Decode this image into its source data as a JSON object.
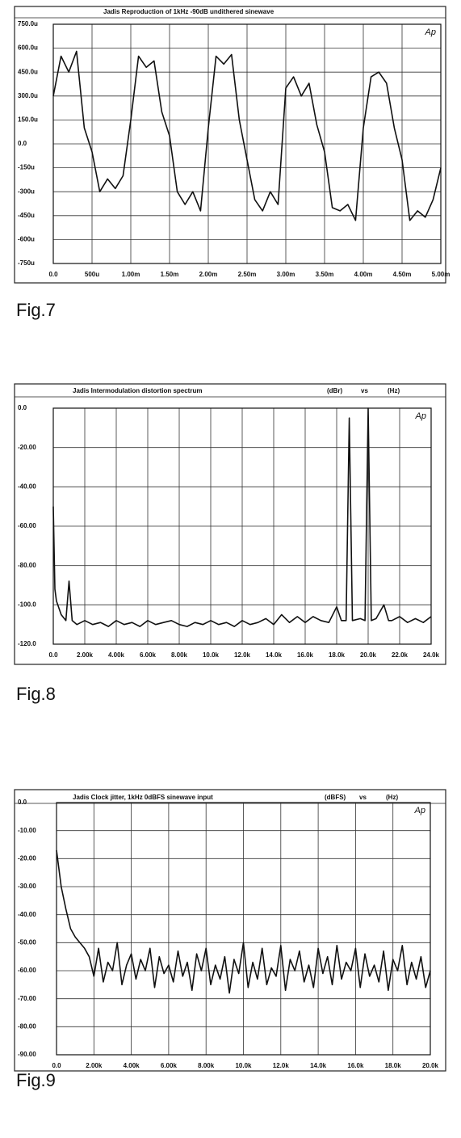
{
  "chart_data": [
    {
      "type": "line",
      "title": "Jadis Reproduction of 1kHz -90dB undithered sinewave",
      "annotation": "Ap",
      "caption": "Fig.7",
      "color": "#111111",
      "grid": true,
      "x": [
        0,
        0.1,
        0.2,
        0.3,
        0.4,
        0.5,
        0.6,
        0.7,
        0.8,
        0.9,
        1.0,
        1.1,
        1.2,
        1.3,
        1.4,
        1.5,
        1.6,
        1.7,
        1.8,
        1.9,
        2.0,
        2.1,
        2.2,
        2.3,
        2.4,
        2.5,
        2.6,
        2.7,
        2.8,
        2.9,
        3.0,
        3.1,
        3.2,
        3.3,
        3.4,
        3.5,
        3.6,
        3.7,
        3.8,
        3.9,
        4.0,
        4.1,
        4.2,
        4.3,
        4.4,
        4.5,
        4.6,
        4.7,
        4.8,
        4.9,
        5.0
      ],
      "values": [
        300,
        550,
        450,
        580,
        100,
        -50,
        -300,
        -220,
        -280,
        -200,
        150,
        550,
        480,
        520,
        200,
        50,
        -300,
        -380,
        -300,
        -420,
        100,
        550,
        500,
        560,
        150,
        -100,
        -350,
        -420,
        -300,
        -380,
        350,
        420,
        300,
        380,
        120,
        -50,
        -400,
        -420,
        -380,
        -480,
        100,
        420,
        450,
        380,
        100,
        -100,
        -480,
        -420,
        -460,
        -350,
        -150
      ],
      "xlim": [
        0,
        5
      ],
      "ylim": [
        -750,
        750
      ],
      "xticks": [
        {
          "value": 0,
          "label": "0.0"
        },
        {
          "value": 0.5,
          "label": "500u"
        },
        {
          "value": 1,
          "label": "1.00m"
        },
        {
          "value": 1.5,
          "label": "1.50m"
        },
        {
          "value": 2,
          "label": "2.00m"
        },
        {
          "value": 2.5,
          "label": "2.50m"
        },
        {
          "value": 3,
          "label": "3.00m"
        },
        {
          "value": 3.5,
          "label": "3.50m"
        },
        {
          "value": 4,
          "label": "4.00m"
        },
        {
          "value": 4.5,
          "label": "4.50m"
        },
        {
          "value": 5,
          "label": "5.00m"
        }
      ],
      "yticks": [
        {
          "value": 750,
          "label": "750.0u"
        },
        {
          "value": 600,
          "label": "600.0u"
        },
        {
          "value": 450,
          "label": "450.0u"
        },
        {
          "value": 300,
          "label": "300.0u"
        },
        {
          "value": 150,
          "label": "150.0u"
        },
        {
          "value": 0,
          "label": "0.0"
        },
        {
          "value": -150,
          "label": "-150u"
        },
        {
          "value": -300,
          "label": "-300u"
        },
        {
          "value": -450,
          "label": "-450u"
        },
        {
          "value": -600,
          "label": "-600u"
        },
        {
          "value": -750,
          "label": "-750u"
        }
      ]
    },
    {
      "type": "line",
      "title": "Jadis Intermodulation distortion spectrum",
      "ylabel": "(dBr)",
      "connector": "vs",
      "xlabel": "(Hz)",
      "annotation": "Ap",
      "caption": "Fig.8",
      "color": "#111111",
      "grid": true,
      "x": [
        0,
        100,
        200,
        500,
        800,
        1000,
        1200,
        1500,
        2000,
        2500,
        3000,
        3500,
        4000,
        4500,
        5000,
        5500,
        6000,
        6500,
        7000,
        7500,
        8000,
        8500,
        9000,
        9500,
        10000,
        10500,
        11000,
        11500,
        12000,
        12500,
        13000,
        13500,
        14000,
        14500,
        15000,
        15500,
        16000,
        16500,
        17000,
        17500,
        18000,
        18300,
        18600,
        18800,
        19000,
        19500,
        19800,
        20000,
        20200,
        20500,
        21000,
        21300,
        21500,
        22000,
        22500,
        23000,
        23500,
        24000
      ],
      "values": [
        -50,
        -92,
        -98,
        -105,
        -108,
        -88,
        -108,
        -110,
        -108,
        -110,
        -109,
        -111,
        -108,
        -110,
        -109,
        -111,
        -108,
        -110,
        -109,
        -108,
        -110,
        -111,
        -109,
        -110,
        -108,
        -110,
        -109,
        -111,
        -108,
        -110,
        -109,
        -107,
        -110,
        -105,
        -109,
        -106,
        -109,
        -106,
        -108,
        -109,
        -101,
        -108,
        -108,
        -5,
        -108,
        -107,
        -108,
        0,
        -108,
        -107,
        -100,
        -108,
        -108,
        -106,
        -109,
        -107,
        -109,
        -106
      ],
      "xlim": [
        0,
        24000
      ],
      "ylim": [
        -120,
        0
      ],
      "xticks": [
        {
          "value": 0,
          "label": "0.0"
        },
        {
          "value": 2000,
          "label": "2.00k"
        },
        {
          "value": 4000,
          "label": "4.00k"
        },
        {
          "value": 6000,
          "label": "6.00k"
        },
        {
          "value": 8000,
          "label": "8.00k"
        },
        {
          "value": 10000,
          "label": "10.0k"
        },
        {
          "value": 12000,
          "label": "12.0k"
        },
        {
          "value": 14000,
          "label": "14.0k"
        },
        {
          "value": 16000,
          "label": "16.0k"
        },
        {
          "value": 18000,
          "label": "18.0k"
        },
        {
          "value": 20000,
          "label": "20.0k"
        },
        {
          "value": 22000,
          "label": "22.0k"
        },
        {
          "value": 24000,
          "label": "24.0k"
        }
      ],
      "yticks": [
        {
          "value": 0,
          "label": "0.0"
        },
        {
          "value": -20,
          "label": "-20.00"
        },
        {
          "value": -40,
          "label": "-40.00"
        },
        {
          "value": -60,
          "label": "-60.00"
        },
        {
          "value": -80,
          "label": "-80.00"
        },
        {
          "value": -100,
          "label": "-100.0"
        },
        {
          "value": -120,
          "label": "-120.0"
        }
      ]
    },
    {
      "type": "line",
      "title": "Jadis Clock jitter, 1kHz 0dBFS sinewave input",
      "ylabel": "(dBFS)",
      "connector": "vs",
      "xlabel": "(Hz)",
      "annotation": "Ap",
      "caption": "Fig.9",
      "color": "#111111",
      "grid": true,
      "x": [
        0,
        250,
        500,
        750,
        1000,
        1250,
        1500,
        1750,
        2000,
        2250,
        2500,
        2750,
        3000,
        3250,
        3500,
        3750,
        4000,
        4250,
        4500,
        4750,
        5000,
        5250,
        5500,
        5750,
        6000,
        6250,
        6500,
        6750,
        7000,
        7250,
        7500,
        7750,
        8000,
        8250,
        8500,
        8750,
        9000,
        9250,
        9500,
        9750,
        10000,
        10250,
        10500,
        10750,
        11000,
        11250,
        11500,
        11750,
        12000,
        12250,
        12500,
        12750,
        13000,
        13250,
        13500,
        13750,
        14000,
        14250,
        14500,
        14750,
        15000,
        15250,
        15500,
        15750,
        16000,
        16250,
        16500,
        16750,
        17000,
        17250,
        17500,
        17750,
        18000,
        18250,
        18500,
        18750,
        19000,
        19250,
        19500,
        19750,
        20000
      ],
      "values": [
        -17,
        -30,
        -38,
        -45,
        -48,
        -50,
        -52,
        -55,
        -62,
        -52,
        -64,
        -57,
        -60,
        -50,
        -65,
        -58,
        -54,
        -63,
        -56,
        -60,
        -52,
        -66,
        -55,
        -61,
        -58,
        -64,
        -53,
        -62,
        -57,
        -67,
        -54,
        -60,
        -52,
        -65,
        -58,
        -63,
        -55,
        -68,
        -56,
        -61,
        -50,
        -66,
        -57,
        -63,
        -52,
        -65,
        -59,
        -62,
        -51,
        -67,
        -56,
        -60,
        -53,
        -64,
        -58,
        -66,
        -52,
        -61,
        -55,
        -65,
        -51,
        -63,
        -57,
        -60,
        -52,
        -66,
        -54,
        -62,
        -58,
        -64,
        -53,
        -67,
        -56,
        -60,
        -51,
        -65,
        -57,
        -63,
        -55,
        -66,
        -60
      ],
      "xlim": [
        0,
        20000
      ],
      "ylim": [
        -90,
        0
      ],
      "xticks": [
        {
          "value": 0,
          "label": "0.0"
        },
        {
          "value": 2000,
          "label": "2.00k"
        },
        {
          "value": 4000,
          "label": "4.00k"
        },
        {
          "value": 6000,
          "label": "6.00k"
        },
        {
          "value": 8000,
          "label": "8.00k"
        },
        {
          "value": 10000,
          "label": "10.0k"
        },
        {
          "value": 12000,
          "label": "12.0k"
        },
        {
          "value": 14000,
          "label": "14.0k"
        },
        {
          "value": 16000,
          "label": "16.0k"
        },
        {
          "value": 18000,
          "label": "18.0k"
        },
        {
          "value": 20000,
          "label": "20.0k"
        }
      ],
      "yticks": [
        {
          "value": 0,
          "label": "0.0"
        },
        {
          "value": -10,
          "label": "-10.00"
        },
        {
          "value": -20,
          "label": "-20.00"
        },
        {
          "value": -30,
          "label": "-30.00"
        },
        {
          "value": -40,
          "label": "-40.00"
        },
        {
          "value": -50,
          "label": "-50.00"
        },
        {
          "value": -60,
          "label": "-60.00"
        },
        {
          "value": -70,
          "label": "-70.00"
        },
        {
          "value": -80,
          "label": "-80.00"
        },
        {
          "value": -90,
          "label": "-90.00"
        }
      ]
    }
  ]
}
